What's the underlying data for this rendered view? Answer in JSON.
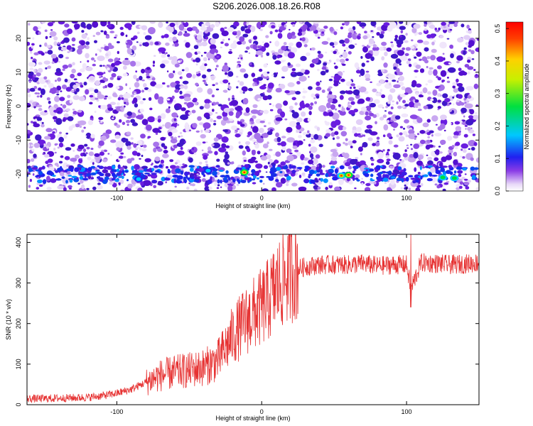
{
  "title": "S206.2026.008.18.26.R08",
  "colors": {
    "snr_line": "#e63232",
    "speckle": "#6a1de0",
    "background": "#ffffff"
  },
  "chart_data": [
    {
      "type": "heatmap",
      "title": "S206.2026.008.18.26.R08",
      "xlabel": "Height of straight line (km)",
      "ylabel": "Frequency (Hz)",
      "xlim": [
        -162,
        150
      ],
      "ylim": [
        -25,
        25
      ],
      "xticks": [
        -100,
        0,
        100
      ],
      "yticks": [
        -20,
        -10,
        0,
        10,
        20
      ],
      "xtick_labels": [
        "-100",
        "0",
        "100"
      ],
      "ytick_labels": [
        "-20",
        "-10",
        "0",
        "10",
        "20"
      ],
      "colorbar": {
        "label": "Normalized spectral amplitude",
        "range": [
          0.0,
          0.52
        ],
        "ticks": [
          0.0,
          0.1,
          0.2,
          0.3,
          0.4,
          0.5
        ],
        "tick_labels": [
          "0.0",
          "0.1",
          "0.2",
          "0.3",
          "0.4",
          "0.5"
        ]
      },
      "band": {
        "frequency_hz": -20,
        "description": "signal band near -20 Hz"
      },
      "peaks": [
        {
          "x": -12,
          "y": -19.5,
          "value": 0.42
        },
        {
          "x": 55,
          "y": -20.5,
          "value": 0.38
        },
        {
          "x": 60,
          "y": -20.3,
          "value": 0.4
        },
        {
          "x": 125,
          "y": -21.0,
          "value": 0.25
        },
        {
          "x": 133,
          "y": -21.2,
          "value": 0.3
        },
        {
          "x": -85,
          "y": -21.5,
          "value": 0.12
        },
        {
          "x": -37,
          "y": -19.0,
          "value": 0.15
        }
      ]
    },
    {
      "type": "line",
      "xlabel": "Height of straight line (km)",
      "ylabel": "SNR (10 * v/v)",
      "xlim": [
        -162,
        150
      ],
      "ylim": [
        0,
        420
      ],
      "xticks": [
        -100,
        0,
        100
      ],
      "yticks": [
        0,
        100,
        200,
        300,
        400
      ],
      "xtick_labels": [
        "-100",
        "0",
        "100"
      ],
      "ytick_labels": [
        "0",
        "100",
        "200",
        "300",
        "400"
      ],
      "series": [
        {
          "name": "SNR",
          "x": [
            -162,
            -150,
            -140,
            -130,
            -120,
            -110,
            -100,
            -90,
            -80,
            -70,
            -60,
            -50,
            -40,
            -30,
            -25,
            -20,
            -15,
            -10,
            -5,
            0,
            5,
            10,
            15,
            20,
            25,
            30,
            40,
            50,
            60,
            70,
            80,
            90,
            100,
            103,
            110,
            120,
            130,
            140,
            150
          ],
          "values": [
            15,
            15,
            16,
            17,
            18,
            22,
            28,
            38,
            55,
            72,
            80,
            85,
            92,
            110,
            140,
            170,
            190,
            210,
            225,
            240,
            260,
            290,
            310,
            330,
            335,
            340,
            345,
            345,
            345,
            348,
            342,
            345,
            345,
            285,
            350,
            348,
            345,
            347,
            350
          ]
        }
      ],
      "annotations": [
        {
          "x": 103,
          "y": 420,
          "note": "spike"
        },
        {
          "x": 103,
          "y": 240,
          "note": "dip"
        }
      ]
    }
  ]
}
